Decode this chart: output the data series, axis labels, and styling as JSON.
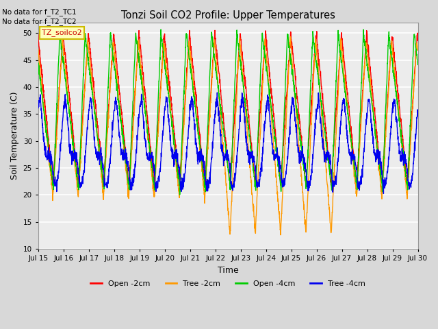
{
  "title": "Tonzi Soil CO2 Profile: Upper Temperatures",
  "xlabel": "Time",
  "ylabel": "Soil Temperature (C)",
  "ylim": [
    10,
    52
  ],
  "yticks": [
    10,
    15,
    20,
    25,
    30,
    35,
    40,
    45,
    50
  ],
  "note1": "No data for f_T2_TC1",
  "note2": "No data for f_T2_TC2",
  "legend_label": "TZ_soilco2",
  "legend_entries": [
    "Open -2cm",
    "Tree -2cm",
    "Open -4cm",
    "Tree -4cm"
  ],
  "line_colors": [
    "#ff0000",
    "#ff9900",
    "#00cc00",
    "#0000ee"
  ],
  "background_color": "#d8d8d8",
  "plot_bg_color": "#ececec",
  "grid_color": "#ffffff",
  "n_days": 15,
  "start_day": 15,
  "pts_per_day": 144,
  "phase_peak": 0.58
}
